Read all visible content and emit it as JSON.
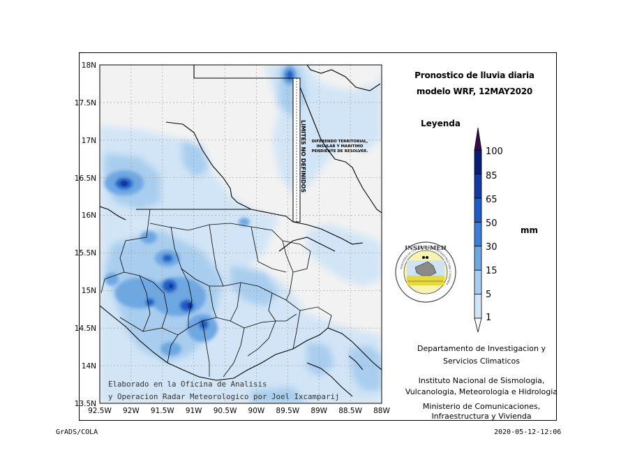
{
  "title": {
    "line1": "Pronostico de lluvia diaria",
    "line2": "modelo WRF,   12MAY2020"
  },
  "legend": {
    "title": "Leyenda",
    "unit": "mm",
    "levels": [
      "1",
      "5",
      "15",
      "30",
      "50",
      "65",
      "85",
      "100"
    ],
    "colors": [
      "#ffffff",
      "#d2e5f6",
      "#a8cdee",
      "#6ea8e3",
      "#3d7ed6",
      "#1f5bc4",
      "#14399f",
      "#0a1d75",
      "#3a0a4a"
    ]
  },
  "axes": {
    "lat_labels": [
      "18N",
      "17.5N",
      "17N",
      "16.5N",
      "16N",
      "15.5N",
      "15N",
      "14.5N",
      "14N",
      "13.5N"
    ],
    "lon_labels": [
      "92.5W",
      "92W",
      "91.5W",
      "91W",
      "90.5W",
      "90W",
      "89.5W",
      "89W",
      "88.5W",
      "88W"
    ]
  },
  "map_text": {
    "limites": "LIMITES NO DEFINIDOS",
    "diferendo_1": "DIFERENDO TERRITORIAL,",
    "diferendo_2": "INSULAR Y MARITIMO",
    "diferendo_3": "PENDIENTE DE RESOLVER.",
    "elaborado_1": "Elaborado en la Oficina de Analisis",
    "elaborado_2": "y Operacion Radar Meteorologico por Joel Ixcamparij"
  },
  "logo": {
    "name": "INSIVUMEH",
    "ring_text": "MINISTERIO DE COMUNICACIONES, INFRAESTRUCTURA Y VIVIENDA"
  },
  "credits": {
    "dept_1": "Departamento de Investigacion y",
    "dept_2": "Servicios Climaticos",
    "inst_1": "Instituto Nacional de Sismologia,",
    "inst_2": "Vulcanologia, Meteorologia e Hidrologia",
    "min_1": "Ministerio de Comunicaciones,",
    "min_2": "Infraestructura y Vivienda"
  },
  "footer": {
    "left": "GrADS/COLA",
    "right": "2020-05-12-12:06"
  }
}
